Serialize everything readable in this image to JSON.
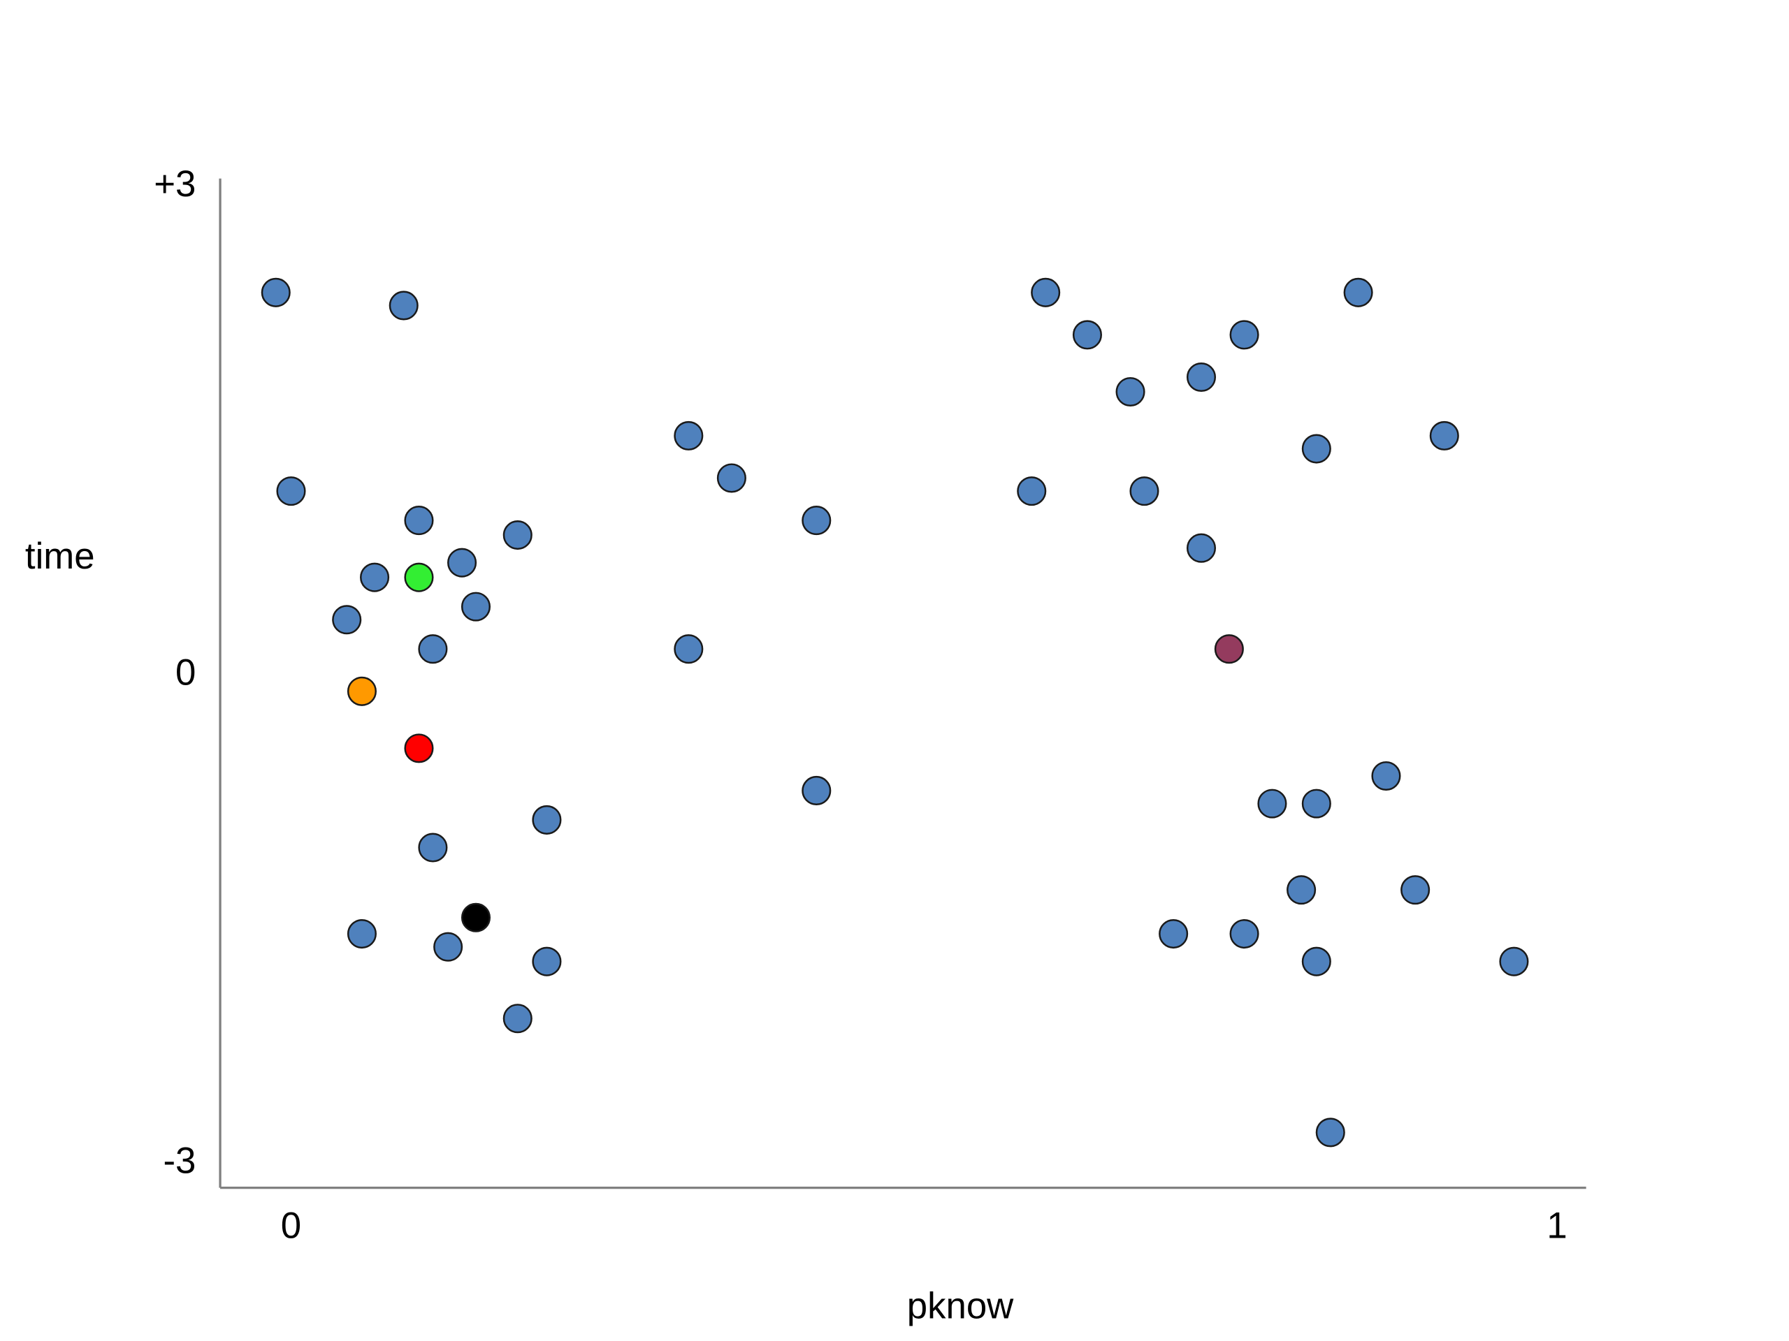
{
  "chart_data": {
    "type": "scatter",
    "x_label": "pknow",
    "y_label": "time",
    "xlim": [
      -0.056,
      1.023
    ],
    "ylim": [
      -3.15,
      3.05
    ],
    "xticks": [
      0,
      1
    ],
    "yticks": [
      {
        "value": 3,
        "label": "+3"
      },
      0,
      -3
    ],
    "series": [
      {
        "color": "#4f81bd",
        "x": [
          -0.012,
          0.089,
          0,
          0.101,
          0.179,
          0.135,
          0.066,
          0.146,
          0.044,
          0.112,
          0.314,
          0.348,
          0.415,
          0.314,
          0.415,
          0.202,
          0.112,
          0.056,
          0.124,
          0.202,
          0.179,
          0.596,
          0.629,
          0.663,
          0.719,
          0.753,
          0.843,
          0.911,
          0.81,
          0.585,
          0.674,
          0.719,
          0.865,
          0.775,
          0.81,
          0.798,
          0.888,
          0.697,
          0.753,
          0.81,
          0.966,
          0.821
        ],
        "values": [
          2.35,
          2.27,
          1.13,
          0.95,
          0.86,
          0.69,
          0.6,
          0.42,
          0.34,
          0.16,
          1.47,
          1.21,
          0.95,
          0.16,
          -0.71,
          -0.89,
          -1.06,
          -1.59,
          -1.67,
          -1.76,
          -2.11,
          2.35,
          2.09,
          1.74,
          1.83,
          2.09,
          2.35,
          1.47,
          1.39,
          1.13,
          1.13,
          0.78,
          -0.62,
          -0.79,
          -0.79,
          -1.32,
          -1.32,
          -1.59,
          -1.59,
          -1.76,
          -1.76,
          -2.81
        ]
      },
      {
        "color": "#33ee33",
        "x": [
          0.101
        ],
        "values": [
          0.6
        ]
      },
      {
        "color": "#ff9900",
        "x": [
          0.056
        ],
        "values": [
          -0.1
        ]
      },
      {
        "color": "#ff0000",
        "x": [
          0.101
        ],
        "values": [
          -0.45
        ]
      },
      {
        "color": "#000000",
        "x": [
          0.146
        ],
        "values": [
          -1.49
        ]
      },
      {
        "color": "#943b5e",
        "x": [
          0.741
        ],
        "values": [
          0.16
        ]
      }
    ]
  }
}
